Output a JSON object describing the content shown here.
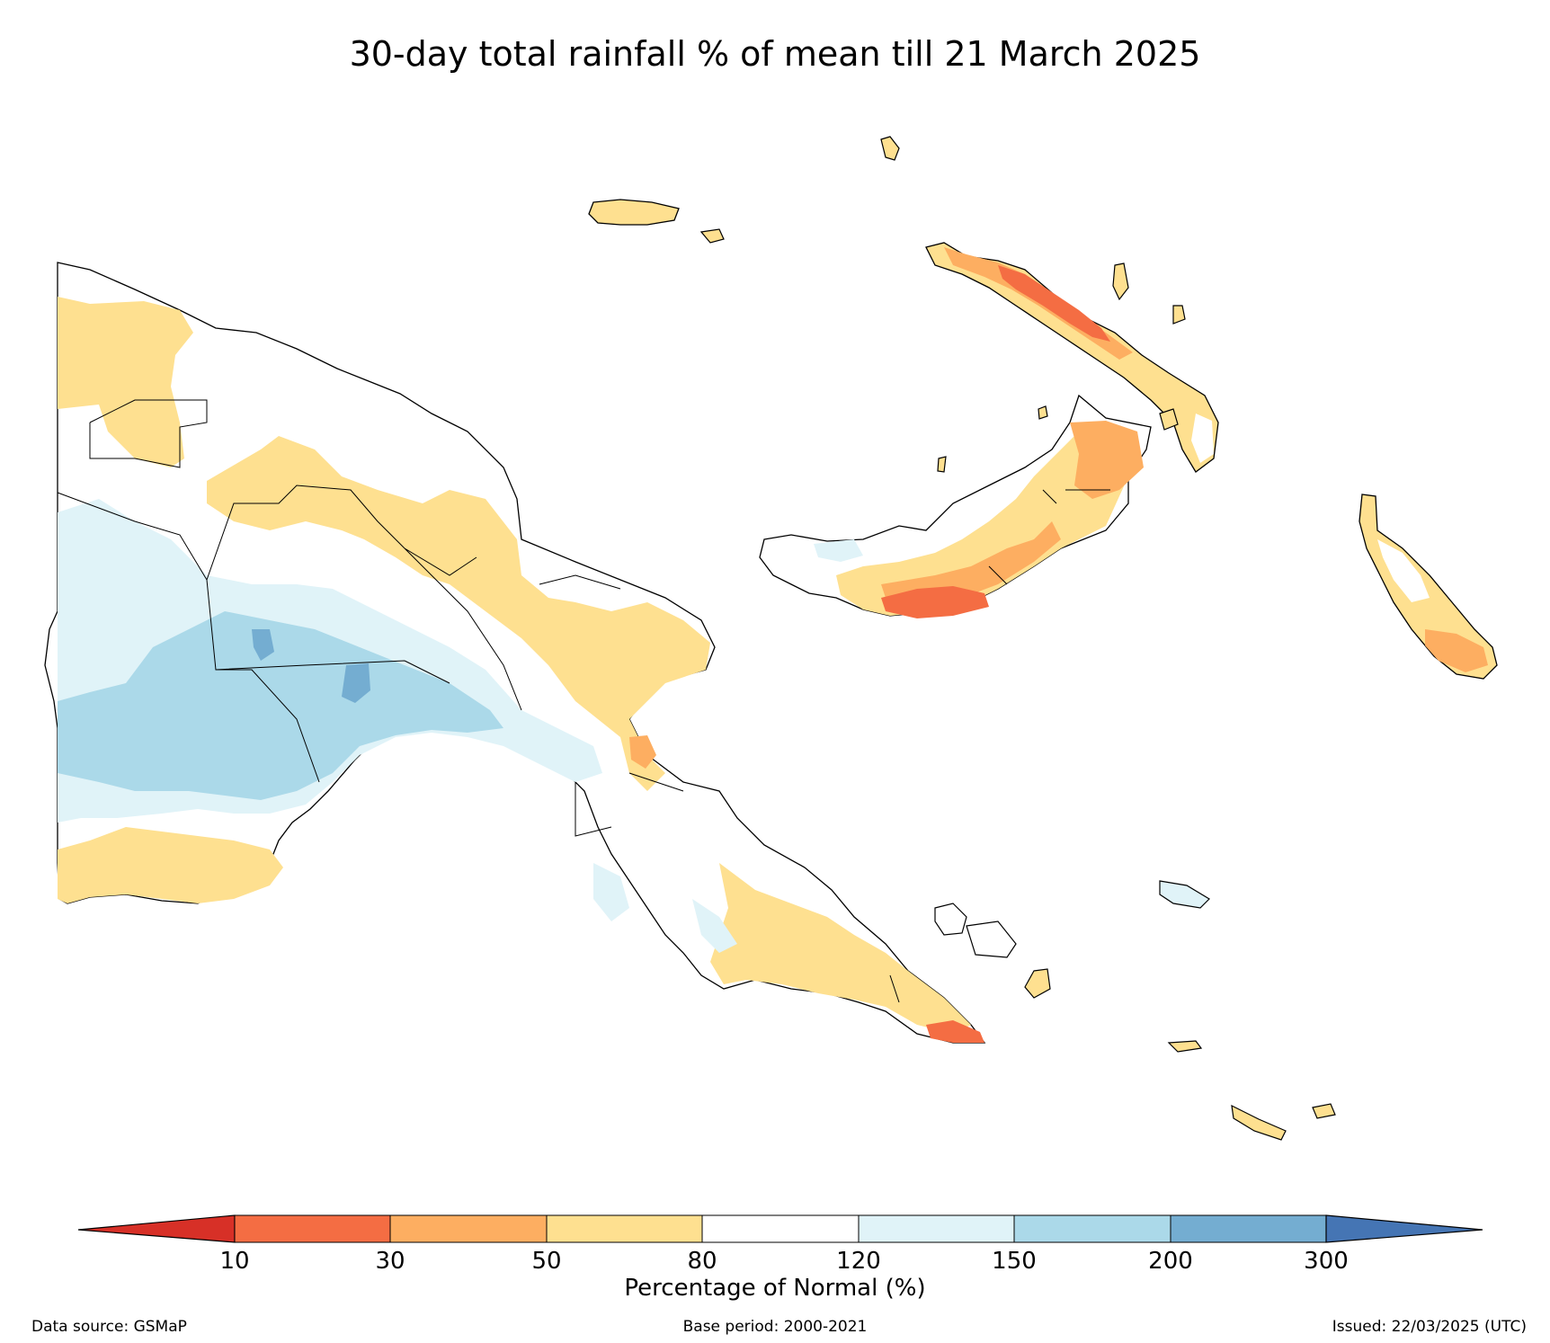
{
  "title": "30-day total rainfall % of mean till 21 March 2025",
  "legend": {
    "title": "Percentage of Normal (%)",
    "ticks": [
      "10",
      "30",
      "50",
      "80",
      "120",
      "150",
      "200",
      "300"
    ],
    "colors": {
      "below_10": "#d73027",
      "p10_30": "#f46d43",
      "p30_50": "#fdae61",
      "p50_80": "#fee090",
      "p80_120": "#ffffff",
      "p120_150": "#e0f3f8",
      "p150_200": "#abd9e9",
      "p200_300": "#74add1",
      "above_300": "#4575b4"
    }
  },
  "footer": {
    "source": "Data source: GSMaP",
    "base_period": "Base period: 2000-2021",
    "issued": "Issued: 22/03/2025 (UTC)"
  }
}
